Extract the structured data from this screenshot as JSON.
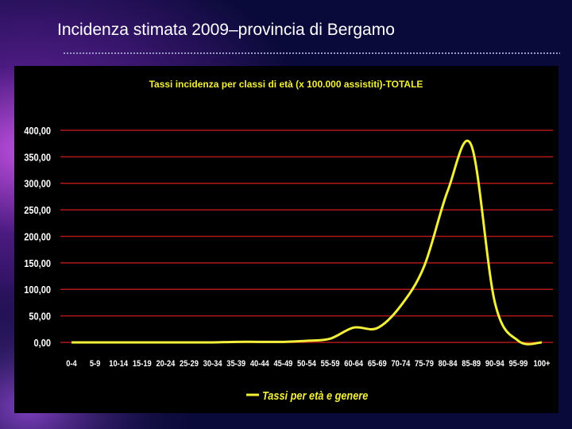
{
  "slide_title": "Incidenza stimata 2009–provincia di Bergamo",
  "chart_data": {
    "type": "line",
    "title": "Tassi  incidenza per classi di età (x 100.000 assistiti)-TOTALE",
    "categories": [
      "0-4",
      "5-9",
      "10-14",
      "15-19",
      "20-24",
      "25-29",
      "30-34",
      "35-39",
      "40-44",
      "45-49",
      "50-54",
      "55-59",
      "60-64",
      "65-69",
      "70-74",
      "75-79",
      "80-84",
      "85-89",
      "90-94",
      "95-99",
      "100+"
    ],
    "series": [
      {
        "name": "Tassi per età e genere",
        "color": "#f2f03a",
        "values": [
          0,
          0,
          0,
          0,
          0,
          0,
          0,
          1,
          1,
          1,
          3,
          7,
          28,
          27,
          69,
          144,
          286,
          372,
          76,
          3,
          0
        ]
      }
    ],
    "ylim": [
      0,
      400
    ],
    "yticks": [
      {
        "value": 0,
        "label": "0,00"
      },
      {
        "value": 50,
        "label": "50,00"
      },
      {
        "value": 100,
        "label": "100,00"
      },
      {
        "value": 150,
        "label": "150,00"
      },
      {
        "value": 200,
        "label": "200,00"
      },
      {
        "value": 250,
        "label": "250,00"
      },
      {
        "value": 300,
        "label": "300,00"
      },
      {
        "value": 350,
        "label": "350,00"
      },
      {
        "value": 400,
        "label": "400,00"
      }
    ],
    "grid": true,
    "grid_color": "#b01818",
    "legend": "bottom"
  }
}
